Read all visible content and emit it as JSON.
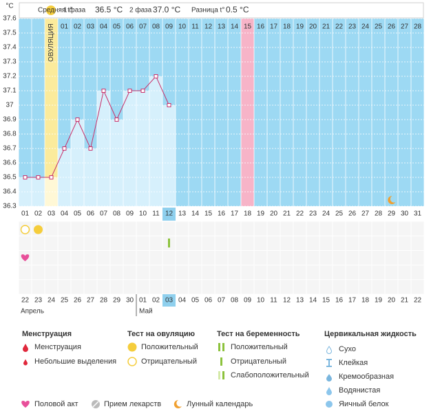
{
  "header": {
    "avg_label": "Средняя t°",
    "phase1_label": "1 фаза",
    "phase1_value": "36.5 °C",
    "phase2_label": "2 фаза",
    "phase2_value": "37.0 °C",
    "diff_label": "Разница t°",
    "diff_value": "0.5 °C"
  },
  "chart_data": {
    "type": "line",
    "y_label": "°C",
    "categories": [
      "01",
      "02",
      "03",
      "04",
      "05",
      "06",
      "07",
      "08",
      "09",
      "10",
      "11",
      "12",
      "13",
      "14",
      "15",
      "16",
      "17",
      "18",
      "19",
      "20",
      "21",
      "22",
      "23",
      "24",
      "25",
      "26",
      "27",
      "28",
      "29",
      "30",
      "31"
    ],
    "cycle_days": [
      null,
      null,
      null,
      "01",
      "02",
      "03",
      "04",
      "05",
      "06",
      "07",
      "08",
      "09",
      "10",
      "11",
      "12",
      "13",
      "14",
      "15",
      "16",
      "17",
      "18",
      "19",
      "20",
      "21",
      "22",
      "23",
      "24",
      "25",
      "26",
      "27",
      "28"
    ],
    "ovulation_label": "ОВУЛЯЦИЯ",
    "values": [
      36.5,
      36.5,
      36.5,
      36.7,
      36.9,
      36.7,
      37.1,
      36.9,
      37.1,
      37.1,
      37.2,
      37.0,
      null,
      null,
      null,
      null,
      null,
      null,
      null,
      null,
      null,
      null,
      null,
      null,
      null,
      null,
      null,
      null,
      null,
      null,
      null
    ],
    "color": "#c8306a",
    "ylim": [
      36.3,
      37.6
    ],
    "yticks": [
      36.3,
      36.4,
      36.5,
      36.6,
      36.7,
      36.8,
      36.9,
      37,
      37.1,
      37.2,
      37.3,
      37.4,
      37.5,
      37.6
    ],
    "grid": true
  },
  "calendar": {
    "days": [
      {
        "label": "22"
      },
      {
        "label": "23"
      },
      {
        "label": "24"
      },
      {
        "label": "25"
      },
      {
        "label": "26"
      },
      {
        "label": "27",
        "holiday": true
      },
      {
        "label": "28",
        "holiday": true
      },
      {
        "label": "29"
      },
      {
        "label": "30"
      },
      {
        "label": "01"
      },
      {
        "label": "02"
      },
      {
        "label": "03"
      },
      {
        "label": "04",
        "holiday": true
      },
      {
        "label": "05",
        "holiday": true
      },
      {
        "label": "06"
      },
      {
        "label": "07"
      },
      {
        "label": "08"
      },
      {
        "label": "09"
      },
      {
        "label": "10"
      },
      {
        "label": "11",
        "holiday": true
      },
      {
        "label": "12",
        "holiday": true
      },
      {
        "label": "13"
      },
      {
        "label": "14"
      },
      {
        "label": "15"
      },
      {
        "label": "16"
      },
      {
        "label": "17"
      },
      {
        "label": "18",
        "holiday": true
      },
      {
        "label": "19",
        "holiday": true
      },
      {
        "label": "20"
      },
      {
        "label": "21"
      },
      {
        "label": "22"
      }
    ],
    "months": [
      "Апрель",
      "Май"
    ]
  },
  "legend": [
    {
      "title": "Менструация",
      "items": [
        "Менструация",
        "Небольшие выделения"
      ]
    },
    {
      "title": "Тест на овуляцию",
      "items": [
        "Положительный",
        "Отрицательный"
      ]
    },
    {
      "title": "Тест на беременность",
      "items": [
        "Положительный",
        "Отрицательный",
        "Слабоположительный"
      ]
    },
    {
      "title": "Цервикальная жидкость",
      "items": [
        "Сухо",
        "Клейкая",
        "Кремообразная",
        "Водянистая",
        "Яичный белок"
      ]
    }
  ],
  "legend_bottom": [
    "Половой акт",
    "Прием лекарств",
    "Лунный календарь"
  ]
}
